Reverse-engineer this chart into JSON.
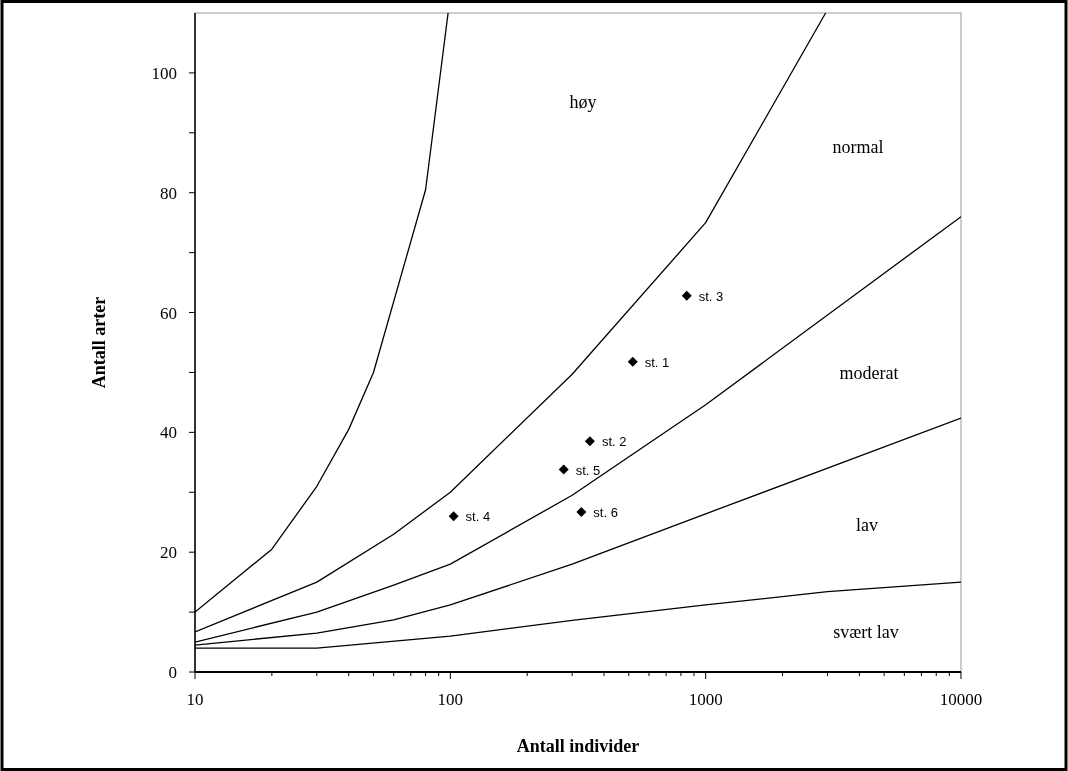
{
  "chart_data": {
    "type": "line",
    "xlabel": "Antall individer",
    "ylabel": "Antall arter",
    "log": "x",
    "grid": false,
    "marker": "none",
    "line_style": "solid",
    "xlim": [
      10,
      10000
    ],
    "ylim": [
      0,
      110
    ],
    "xticks": [
      10,
      {
        "value": 20,
        "label": null
      },
      {
        "value": 30,
        "label": null
      },
      {
        "value": 40,
        "label": null
      },
      {
        "value": 50,
        "label": null
      },
      {
        "value": 60,
        "label": null
      },
      {
        "value": 70,
        "label": null
      },
      {
        "value": 80,
        "label": null
      },
      {
        "value": 90,
        "label": null
      },
      100,
      {
        "value": 200,
        "label": null
      },
      {
        "value": 300,
        "label": null
      },
      {
        "value": 400,
        "label": null
      },
      {
        "value": 500,
        "label": null
      },
      {
        "value": 600,
        "label": null
      },
      {
        "value": 700,
        "label": null
      },
      {
        "value": 800,
        "label": null
      },
      {
        "value": 900,
        "label": null
      },
      1000,
      {
        "value": 2000,
        "label": null
      },
      {
        "value": 3000,
        "label": null
      },
      {
        "value": 4000,
        "label": null
      },
      {
        "value": 5000,
        "label": null
      },
      {
        "value": 6000,
        "label": null
      },
      {
        "value": 7000,
        "label": null
      },
      {
        "value": 8000,
        "label": null
      },
      {
        "value": 9000,
        "label": null
      },
      10000
    ],
    "yticks": [
      0,
      {
        "value": 10,
        "label": null
      },
      20,
      {
        "value": 30,
        "label": null
      },
      40,
      {
        "value": 50,
        "label": null
      },
      60,
      {
        "value": 70,
        "label": null
      },
      80,
      {
        "value": 90,
        "label": null
      },
      100
    ],
    "series": [
      {
        "color": "#000000",
        "x": [
          10,
          20,
          30,
          40,
          50,
          80,
          98
        ],
        "values": [
          10,
          20.5,
          31,
          40.5,
          50,
          80.5,
          110
        ]
      },
      {
        "color": "#000000",
        "x": [
          10,
          30,
          60,
          100,
          300,
          1000,
          2950
        ],
        "values": [
          6.7,
          15,
          23,
          30,
          49.7,
          75,
          110
        ]
      },
      {
        "color": "#000000",
        "x": [
          10,
          30,
          60,
          100,
          300,
          1000,
          10000
        ],
        "values": [
          5,
          10,
          14.5,
          18,
          29.5,
          44.6,
          76
        ]
      },
      {
        "color": "#000000",
        "x": [
          10,
          30,
          60,
          100,
          300,
          1000,
          10000
        ],
        "values": [
          4.5,
          6.5,
          8.7,
          11.2,
          18,
          26.4,
          42.4
        ]
      },
      {
        "color": "#000000",
        "x": [
          10,
          30,
          100,
          300,
          1000,
          3000,
          10000
        ],
        "values": [
          4,
          4,
          6,
          8.6,
          11.2,
          13.4,
          15
        ]
      },
      {
        "type": "scatter",
        "color": "#000000",
        "marker": "diamond",
        "x": [
          518,
          352,
          843,
          103,
          278,
          326
        ],
        "values": [
          51.8,
          38.5,
          62.8,
          26,
          33.8,
          26.7
        ]
      }
    ],
    "annotations": [
      {
        "text": "st. 1",
        "x": 518,
        "y": 51.8
      },
      {
        "text": "st. 2",
        "x": 352,
        "y": 38.5
      },
      {
        "text": "st. 3",
        "x": 843,
        "y": 62.8
      },
      {
        "text": "st. 4",
        "x": 103,
        "y": 26
      },
      {
        "text": "st. 5",
        "x": 278,
        "y": 33.8
      },
      {
        "text": "st. 6",
        "x": 326,
        "y": 26.7
      },
      "høy",
      "normal",
      "moderat",
      "lav",
      "svært lav"
    ]
  }
}
